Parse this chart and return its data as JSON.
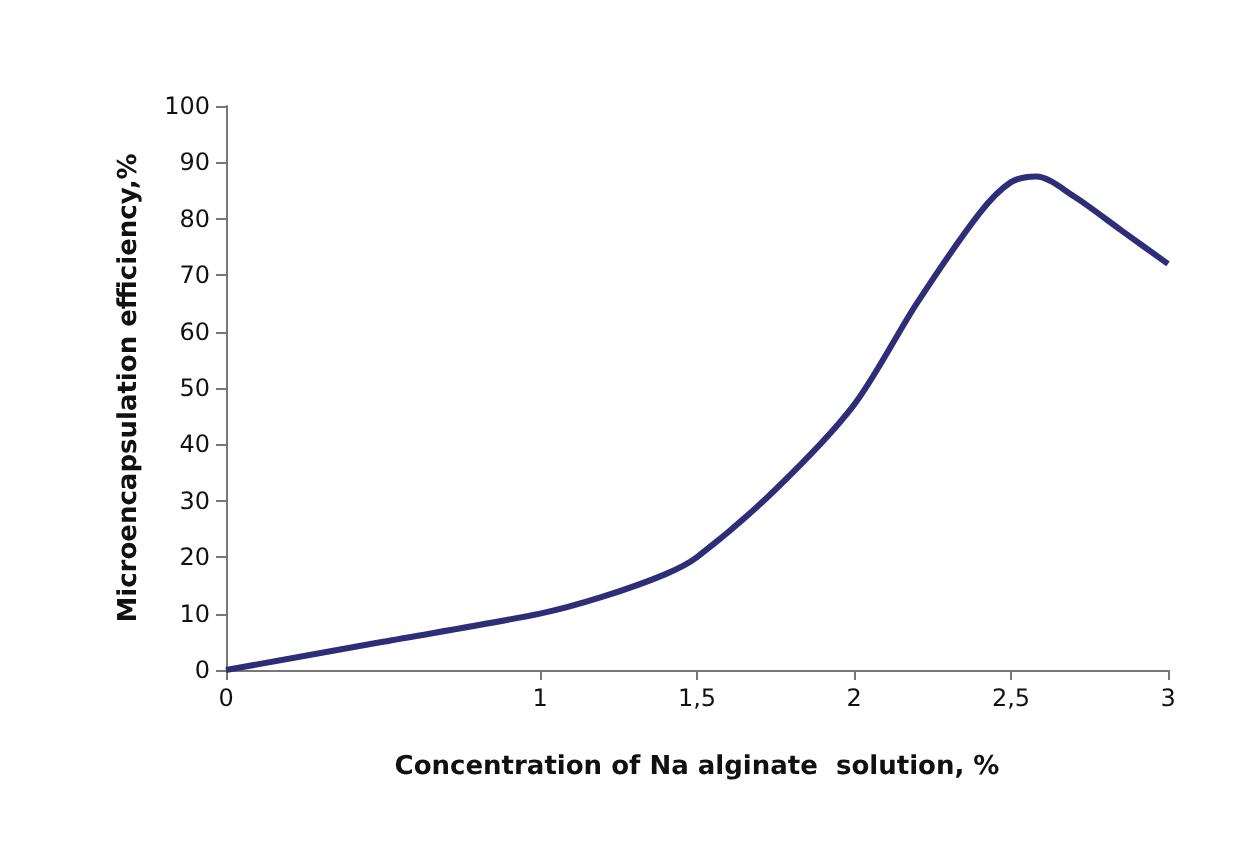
{
  "chart_data": {
    "type": "line",
    "xlabel": "Concentration of Na alginate  solution, %",
    "ylabel": "Microencapsulation efficiency,%",
    "x": [
      0,
      0.5,
      1,
      1.2,
      1.4,
      1.5,
      1.75,
      2,
      2.2,
      2.4,
      2.5,
      2.58,
      2.7,
      2.85,
      3
    ],
    "series": [
      {
        "color": "#2e2e78",
        "values": [
          0,
          5,
          10,
          13,
          17,
          20,
          32,
          47,
          65,
          81,
          86.5,
          87.5,
          84,
          78,
          72
        ]
      }
    ],
    "xlim": [
      0,
      3
    ],
    "xticks": [
      0,
      1,
      {
        "value": 1.5,
        "label": "1,5"
      },
      2,
      {
        "value": 2.5,
        "label": "2,5"
      },
      3
    ],
    "ylim": [
      0,
      100
    ],
    "yticks": [
      0,
      10,
      20,
      30,
      40,
      50,
      60,
      70,
      80,
      90,
      100
    ],
    "marker": "none",
    "line_style": "solid"
  }
}
